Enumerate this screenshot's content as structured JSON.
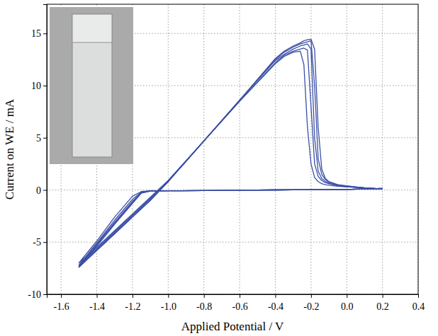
{
  "chart_data": {
    "type": "line",
    "x_label": "Applied Potential / V",
    "y_label": "Current on WE / mA",
    "color": "#3b4fa6",
    "grid": true,
    "xlim": [
      -1.68,
      0.4
    ],
    "ylim": [
      -10,
      17.8
    ],
    "xticks": [
      -1.6,
      -1.4,
      -1.2,
      {
        "value": -1.0,
        "label": "-1.0"
      },
      -0.8,
      -0.6,
      -0.4,
      -0.2,
      {
        "value": 0.0,
        "label": "0.0"
      },
      0.2,
      0.4
    ],
    "yticks": [
      -10,
      -5,
      0,
      5,
      10,
      15
    ],
    "x": [
      0.2,
      0.1,
      0.0,
      -0.2,
      -0.4,
      -0.6,
      -0.8,
      -1.0,
      -1.1,
      -1.15,
      -1.2,
      -1.3,
      -1.4,
      -1.5,
      -1.4,
      -1.3,
      -1.2,
      -1.1,
      -1.0,
      -0.8,
      -0.6,
      -0.4,
      -0.35,
      -0.3,
      -0.26,
      -0.24,
      -0.22,
      -0.2,
      -0.18,
      -0.16,
      -0.14,
      -0.12,
      -0.1,
      -0.05,
      0.0,
      0.1,
      0.2
    ],
    "series": [
      {
        "values": [
          0.15,
          0.1,
          0.05,
          0.02,
          0.0,
          -0.03,
          -0.06,
          -0.08,
          -0.1,
          -0.15,
          -0.6,
          -2.6,
          -4.9,
          -7.0,
          -5.5,
          -3.9,
          -2.3,
          -0.7,
          0.9,
          4.7,
          8.5,
          12.1,
          12.8,
          13.2,
          13.3,
          12.0,
          6.0,
          2.5,
          1.2,
          0.8,
          0.6,
          0.5,
          0.45,
          0.35,
          0.3,
          0.2,
          0.1
        ]
      },
      {
        "values": [
          0.15,
          0.1,
          0.05,
          0.02,
          0.0,
          -0.03,
          -0.06,
          -0.08,
          -0.1,
          -0.2,
          -0.9,
          -2.9,
          -5.1,
          -7.2,
          -5.6,
          -4.0,
          -2.4,
          -0.8,
          0.9,
          4.7,
          8.5,
          12.2,
          12.9,
          13.3,
          13.5,
          13.6,
          13.4,
          8.0,
          2.5,
          1.3,
          0.9,
          0.7,
          0.6,
          0.4,
          0.3,
          0.2,
          0.1
        ]
      },
      {
        "values": [
          0.15,
          0.1,
          0.05,
          0.02,
          0.0,
          -0.03,
          -0.06,
          -0.08,
          -0.1,
          -0.25,
          -1.1,
          -3.1,
          -5.2,
          -7.3,
          -5.7,
          -4.1,
          -2.5,
          -0.9,
          0.8,
          4.7,
          8.6,
          12.4,
          13.0,
          13.5,
          13.8,
          13.9,
          14.0,
          13.5,
          5.0,
          1.8,
          1.1,
          0.8,
          0.6,
          0.45,
          0.35,
          0.2,
          0.1
        ]
      },
      {
        "values": [
          0.15,
          0.1,
          0.05,
          0.02,
          0.0,
          -0.03,
          -0.06,
          -0.08,
          -0.1,
          -0.3,
          -1.2,
          -3.2,
          -5.3,
          -7.4,
          -5.8,
          -4.2,
          -2.6,
          -1.0,
          0.8,
          4.7,
          8.6,
          12.5,
          13.2,
          13.7,
          14.0,
          14.1,
          14.2,
          14.3,
          10.0,
          3.0,
          1.5,
          1.0,
          0.7,
          0.5,
          0.35,
          0.2,
          0.1
        ]
      },
      {
        "values": [
          0.15,
          0.1,
          0.05,
          0.02,
          0.0,
          -0.03,
          -0.06,
          -0.08,
          -0.1,
          -0.3,
          -1.3,
          -3.3,
          -5.4,
          -7.4,
          -5.8,
          -4.2,
          -2.6,
          -1.0,
          0.8,
          4.7,
          8.6,
          12.6,
          13.3,
          13.8,
          14.1,
          14.3,
          14.4,
          14.45,
          13.5,
          6.0,
          2.0,
          1.1,
          0.8,
          0.5,
          0.4,
          0.2,
          0.1
        ]
      }
    ]
  }
}
